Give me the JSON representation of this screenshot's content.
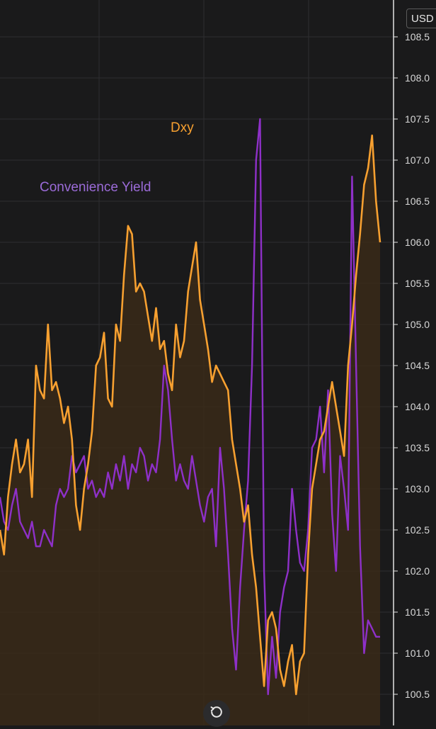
{
  "chart_data": {
    "type": "line",
    "y_axis": {
      "position": "right",
      "range": [
        100.4,
        108.6
      ],
      "ticks": [
        "108.5",
        "108.0",
        "107.5",
        "107.0",
        "106.5",
        "106.0",
        "105.5",
        "105.0",
        "104.5",
        "104.0",
        "103.5",
        "103.0",
        "102.5",
        "102.0",
        "101.5",
        "101.0",
        "100.5"
      ]
    },
    "grid": true,
    "legend": "inline labels",
    "series": [
      {
        "name": "Dxy",
        "color": "#f7a030",
        "fill": "#3a2a18",
        "values": [
          102.5,
          102.2,
          102.9,
          103.3,
          103.6,
          103.2,
          103.3,
          103.6,
          102.9,
          104.5,
          104.2,
          104.1,
          105.0,
          104.2,
          104.3,
          104.1,
          103.8,
          104.0,
          103.6,
          102.8,
          102.5,
          103.0,
          103.3,
          103.7,
          104.5,
          104.6,
          104.9,
          104.1,
          104.0,
          105.0,
          104.8,
          105.6,
          106.2,
          106.1,
          105.4,
          105.5,
          105.4,
          105.1,
          104.8,
          105.2,
          104.7,
          104.8,
          104.4,
          104.2,
          105.0,
          104.6,
          104.8,
          105.4,
          105.7,
          106.0,
          105.3,
          105.0,
          104.7,
          104.3,
          104.5,
          104.4,
          104.3,
          104.2,
          103.6,
          103.3,
          103.0,
          102.6,
          102.8,
          102.2,
          101.8,
          101.2,
          100.6,
          101.4,
          101.5,
          101.3,
          100.8,
          100.6,
          100.9,
          101.1,
          100.5,
          100.9,
          101.0,
          102.2,
          103.0,
          103.3,
          103.6,
          103.7,
          104.0,
          104.3,
          104.0,
          103.7,
          103.4,
          104.5,
          105.0,
          105.6,
          106.1,
          106.7,
          106.9,
          107.3,
          106.5,
          106.0
        ]
      },
      {
        "name": "Convenience Yield",
        "color": "#8e30c8",
        "values": [
          102.9,
          102.6,
          102.5,
          102.8,
          103.0,
          102.6,
          102.5,
          102.4,
          102.6,
          102.3,
          102.3,
          102.5,
          102.4,
          102.3,
          102.8,
          103.0,
          102.9,
          103.0,
          103.4,
          103.2,
          103.3,
          103.4,
          103.0,
          103.1,
          102.9,
          103.0,
          102.9,
          103.2,
          103.0,
          103.3,
          103.1,
          103.4,
          103.0,
          103.3,
          103.2,
          103.5,
          103.4,
          103.1,
          103.3,
          103.2,
          103.6,
          104.5,
          104.2,
          103.6,
          103.1,
          103.3,
          103.1,
          103.0,
          103.4,
          103.1,
          102.8,
          102.6,
          102.9,
          103.0,
          102.3,
          103.5,
          103.0,
          102.2,
          101.3,
          100.8,
          101.8,
          102.5,
          103.1,
          104.5,
          107.0,
          107.5,
          102.0,
          100.5,
          101.2,
          100.7,
          101.5,
          101.8,
          102.0,
          103.0,
          102.5,
          102.1,
          102.0,
          102.5,
          103.5,
          103.6,
          104.0,
          103.2,
          104.2,
          102.7,
          102.0,
          103.4,
          103.0,
          102.5,
          106.8,
          104.5,
          102.3,
          101.0,
          101.4,
          101.3,
          101.2,
          101.2
        ]
      }
    ],
    "annotations": [
      "Dxy",
      "Convenience Yield"
    ]
  },
  "labels": {
    "dxy": "Dxy",
    "convenience_yield": "Convenience Yield"
  },
  "toolbar": {
    "currency": "USD"
  },
  "icons": {
    "reset": "reset-chart-icon"
  }
}
